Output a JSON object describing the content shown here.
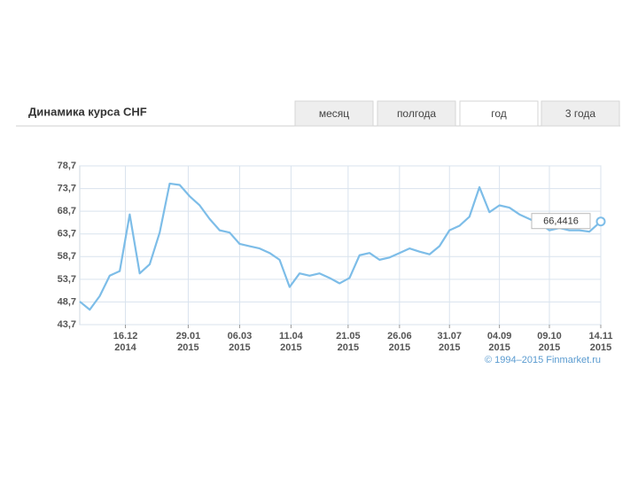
{
  "header": {
    "title": "Динамика курса CHF",
    "tabs": [
      "месяц",
      "полгода",
      "год",
      "3 года"
    ]
  },
  "chart_data": {
    "type": "line",
    "x": [
      "2014-11-14",
      "2014-11-21",
      "2014-11-28",
      "2014-12-05",
      "2014-12-12",
      "2014-12-19",
      "2014-12-26",
      "2015-01-02",
      "2015-01-09",
      "2015-01-16",
      "2015-01-23",
      "2015-01-30",
      "2015-02-06",
      "2015-02-13",
      "2015-02-20",
      "2015-02-27",
      "2015-03-06",
      "2015-03-13",
      "2015-03-20",
      "2015-03-27",
      "2015-04-03",
      "2015-04-10",
      "2015-04-17",
      "2015-04-24",
      "2015-05-01",
      "2015-05-08",
      "2015-05-15",
      "2015-05-22",
      "2015-05-29",
      "2015-06-05",
      "2015-06-12",
      "2015-06-19",
      "2015-06-26",
      "2015-07-03",
      "2015-07-10",
      "2015-07-17",
      "2015-07-24",
      "2015-07-31",
      "2015-08-07",
      "2015-08-14",
      "2015-08-21",
      "2015-08-28",
      "2015-09-04",
      "2015-09-11",
      "2015-09-18",
      "2015-09-25",
      "2015-10-02",
      "2015-10-09",
      "2015-10-16",
      "2015-10-23",
      "2015-10-30",
      "2015-11-06",
      "2015-11-14"
    ],
    "series": [
      {
        "name": "CHF",
        "color": "#7dbde8",
        "values": [
          48.8,
          47,
          50,
          54.5,
          55.5,
          68,
          55,
          57,
          64,
          74.8,
          74.5,
          72,
          70,
          67,
          64.5,
          64,
          61.5,
          61,
          60.5,
          59.5,
          58,
          52,
          55,
          54.5,
          55,
          54,
          52.8,
          54,
          59,
          59.5,
          58,
          58.5,
          59.5,
          60.5,
          59.8,
          59.2,
          61,
          64.5,
          65.5,
          67.5,
          74,
          68.5,
          70,
          69.5,
          68,
          67,
          66,
          64.5,
          65,
          64.5,
          64.5,
          64.2,
          66.4416
        ],
        "value_labels": [
          null,
          null,
          null,
          null,
          null,
          null,
          null,
          null,
          null,
          null,
          null,
          null,
          null,
          null,
          null,
          null,
          null,
          null,
          null,
          null,
          null,
          null,
          null,
          null,
          null,
          null,
          null,
          null,
          null,
          null,
          null,
          null,
          null,
          null,
          null,
          null,
          null,
          null,
          null,
          null,
          null,
          null,
          null,
          null,
          null,
          null,
          null,
          null,
          null,
          null,
          null,
          null,
          "66,4416"
        ]
      }
    ],
    "xlim": [
      "2014-11-14",
      "2015-11-14"
    ],
    "xticks": [
      {
        "value": "2014-12-16",
        "label": [
          "16.12",
          "2014"
        ]
      },
      {
        "value": "2015-01-29",
        "label": [
          "29.01",
          "2015"
        ]
      },
      {
        "value": "2015-03-06",
        "label": [
          "06.03",
          "2015"
        ]
      },
      {
        "value": "2015-04-11",
        "label": [
          "11.04",
          "2015"
        ]
      },
      {
        "value": "2015-05-21",
        "label": [
          "21.05",
          "2015"
        ]
      },
      {
        "value": "2015-06-26",
        "label": [
          "26.06",
          "2015"
        ]
      },
      {
        "value": "2015-07-31",
        "label": [
          "31.07",
          "2015"
        ]
      },
      {
        "value": "2015-09-04",
        "label": [
          "04.09",
          "2015"
        ]
      },
      {
        "value": "2015-10-09",
        "label": [
          "09.10",
          "2015"
        ]
      },
      {
        "value": "2015-11-14",
        "label": [
          "14.11",
          "2015"
        ]
      }
    ],
    "ylim": [
      43.7,
      78.7
    ],
    "yticks": [
      {
        "value": 43.7,
        "label": "43,7"
      },
      {
        "value": 48.7,
        "label": "48,7"
      },
      {
        "value": 53.7,
        "label": "53,7"
      },
      {
        "value": 58.7,
        "label": "58,7"
      },
      {
        "value": 63.7,
        "label": "63,7"
      },
      {
        "value": 68.7,
        "label": "68,7"
      },
      {
        "value": 73.7,
        "label": "73,7"
      },
      {
        "value": 78.7,
        "label": "78,7"
      }
    ],
    "grid": true,
    "credit": "© 1994–2015 Finmarket.ru"
  }
}
